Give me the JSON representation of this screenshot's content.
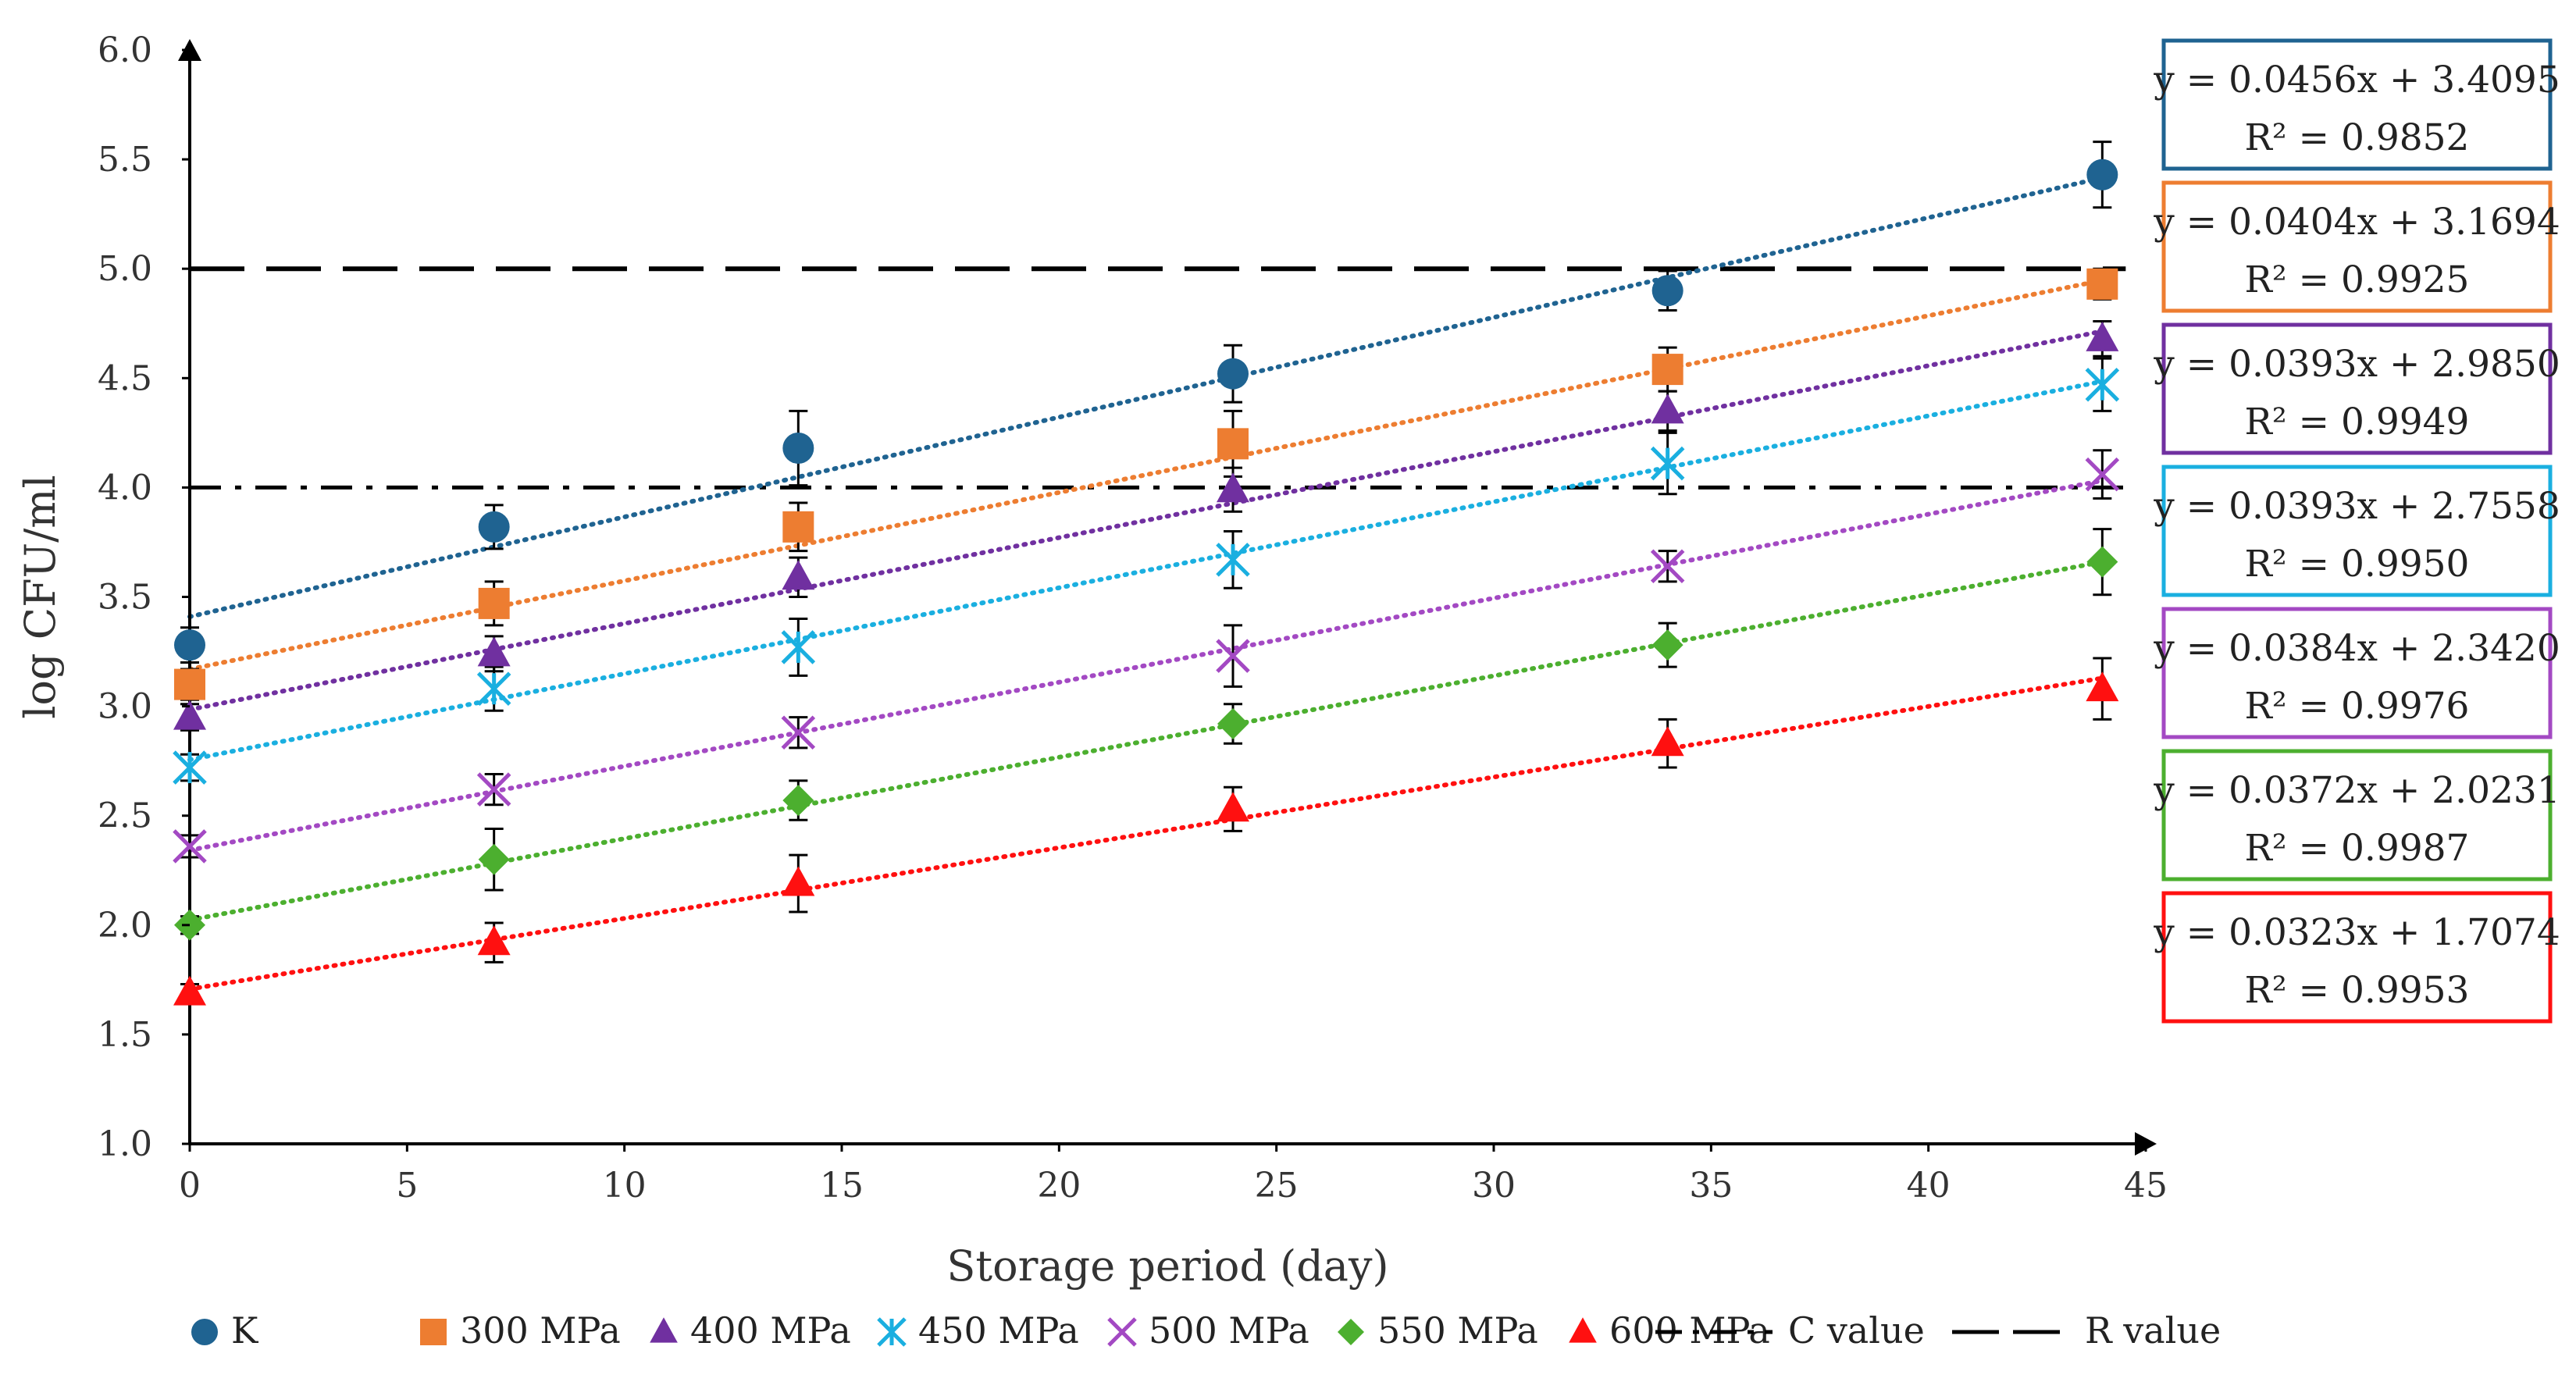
{
  "chart_data": {
    "type": "scatter",
    "title": "",
    "xlabel": "Storage period (day)",
    "ylabel": "log CFU/ml",
    "xlim": [
      0,
      45
    ],
    "ylim": [
      1.0,
      6.0
    ],
    "x_ticks": [
      "0",
      "5",
      "10",
      "15",
      "20",
      "25",
      "30",
      "35",
      "40",
      "45"
    ],
    "y_ticks": [
      "1.0",
      "1.5",
      "2.0",
      "2.5",
      "3.0",
      "3.5",
      "4.0",
      "4.5",
      "5.0",
      "5.5",
      "6.0"
    ],
    "grid": false,
    "legend_position": "bottom",
    "x": [
      0,
      7,
      14,
      24,
      34,
      44
    ],
    "series": [
      {
        "name": "K",
        "marker": "circle",
        "color": "#1F6391",
        "values": [
          3.28,
          3.82,
          4.18,
          4.52,
          4.9,
          5.43
        ],
        "errors": [
          0.08,
          0.1,
          0.17,
          0.13,
          0.09,
          0.15
        ],
        "trend": {
          "slope": 0.0456,
          "intercept": 3.4095
        },
        "equation": "y = 0.0456x + 3.4095",
        "r2": "R² = 0.9852"
      },
      {
        "name": "300 MPa",
        "marker": "square",
        "color": "#ED7D31",
        "values": [
          3.1,
          3.47,
          3.82,
          4.2,
          4.54,
          4.93
        ],
        "errors": [
          0.07,
          0.1,
          0.11,
          0.15,
          0.1,
          0.07
        ],
        "trend": {
          "slope": 0.0404,
          "intercept": 3.1694
        },
        "equation": "y = 0.0404x + 3.1694",
        "r2": "R² = 0.9925"
      },
      {
        "name": "400 MPa",
        "marker": "triangle",
        "color": "#7030A0",
        "values": [
          2.95,
          3.24,
          3.59,
          3.99,
          4.35,
          4.68
        ],
        "errors": [
          0.06,
          0.08,
          0.09,
          0.1,
          0.09,
          0.08
        ],
        "trend": {
          "slope": 0.0393,
          "intercept": 2.985
        },
        "equation": "y = 0.0393x + 2.9850",
        "r2": "R² = 0.9949"
      },
      {
        "name": "450 MPa",
        "marker": "asterisk",
        "color": "#1AAFE0",
        "values": [
          2.72,
          3.08,
          3.27,
          3.67,
          4.11,
          4.47
        ],
        "errors": [
          0.06,
          0.1,
          0.13,
          0.13,
          0.14,
          0.12
        ],
        "trend": {
          "slope": 0.0393,
          "intercept": 2.7558
        },
        "equation": "y = 0.0393x + 2.7558",
        "r2": "R² = 0.9950"
      },
      {
        "name": "500 MPa",
        "marker": "x",
        "color": "#A349C3",
        "values": [
          2.36,
          2.62,
          2.88,
          3.23,
          3.64,
          4.06
        ],
        "errors": [
          0.05,
          0.07,
          0.07,
          0.14,
          0.07,
          0.11
        ],
        "trend": {
          "slope": 0.0384,
          "intercept": 2.342
        },
        "equation": "y = 0.0384x + 2.3420",
        "r2": "R² = 0.9976"
      },
      {
        "name": "550 MPa",
        "marker": "diamond",
        "color": "#4CAF2F",
        "values": [
          2.0,
          2.3,
          2.57,
          2.92,
          3.28,
          3.66
        ],
        "errors": [
          0.04,
          0.14,
          0.09,
          0.09,
          0.1,
          0.15
        ],
        "trend": {
          "slope": 0.0372,
          "intercept": 2.0231
        },
        "equation": "y = 0.0372x + 2.0231",
        "r2": "R² = 0.9987"
      },
      {
        "name": "600 MPa",
        "marker": "triangle",
        "color": "#FF1010",
        "values": [
          1.69,
          1.92,
          2.19,
          2.53,
          2.83,
          3.08
        ],
        "errors": [
          0.04,
          0.09,
          0.13,
          0.1,
          0.11,
          0.14
        ],
        "trend": {
          "slope": 0.0323,
          "intercept": 1.7074
        },
        "equation": "y = 0.0323x + 1.7074",
        "r2": "R² = 0.9953"
      }
    ],
    "reference_lines": [
      {
        "name": "C value",
        "y": 4.0,
        "style": "dash-dot",
        "color": "#000000"
      },
      {
        "name": "R value",
        "y": 5.0,
        "style": "dash",
        "color": "#000000"
      }
    ]
  }
}
